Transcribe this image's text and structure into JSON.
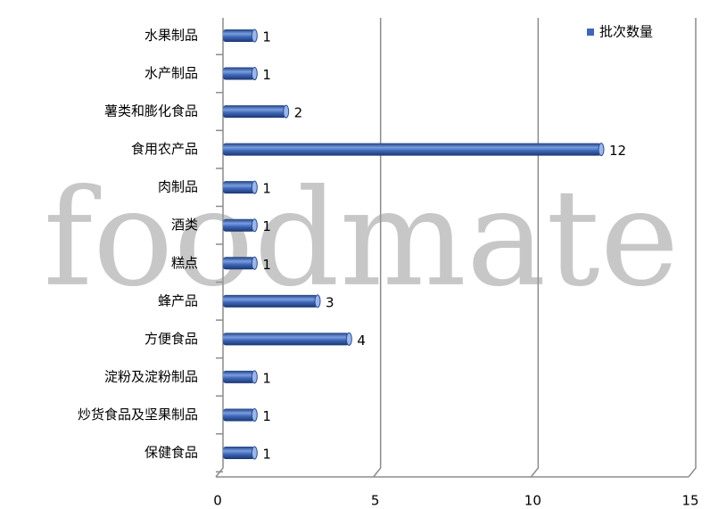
{
  "chart_data": {
    "type": "bar",
    "orientation": "horizontal",
    "categories": [
      "水果制品",
      "水产制品",
      "薯类和膨化食品",
      "食用农产品",
      "肉制品",
      "酒类",
      "糕点",
      "蜂产品",
      "方便食品",
      "淀粉及淀粉制品",
      "炒货食品及坚果制品",
      "保健食品"
    ],
    "series": [
      {
        "name": "批次数量",
        "color": "#3e67b8",
        "values": [
          1,
          1,
          2,
          12,
          1,
          1,
          1,
          3,
          4,
          1,
          1,
          1
        ]
      }
    ],
    "xlim": [
      0,
      15
    ],
    "xticks": [
      0,
      5,
      10,
      15
    ],
    "grid": true,
    "legend": "top-right",
    "watermark": "foodmate"
  }
}
